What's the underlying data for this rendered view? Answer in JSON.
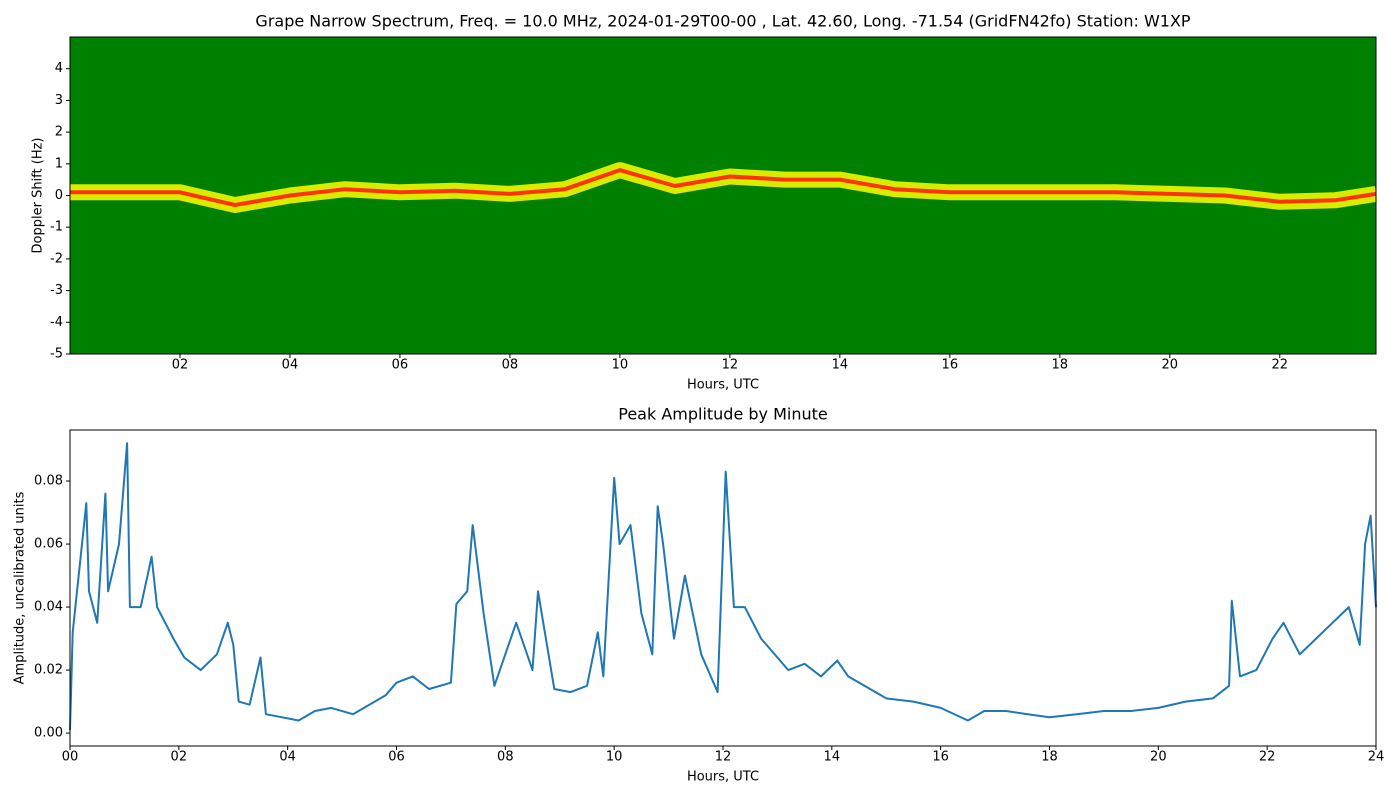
{
  "chart_data": [
    {
      "type": "spectrogram",
      "title": "Grape Narrow Spectrum, Freq. = 10.0 MHz, 2024-01-29T00-00 , Lat.  42.60, Long. -71.54 (GridFN42fo) Station: W1XP",
      "x_label": "Hours, UTC",
      "y_label": "Doppler Shift (Hz)",
      "background_color": "#008000",
      "band_color": "#ffff00",
      "core_color": "#ff3300",
      "x": [
        0,
        1,
        2,
        3,
        4,
        5,
        6,
        7,
        8,
        9,
        10,
        11,
        12,
        13,
        14,
        15,
        16,
        17,
        18,
        19,
        20,
        21,
        22,
        23,
        23.75
      ],
      "values": [
        0.1,
        0.1,
        0.1,
        -0.3,
        0.0,
        0.2,
        0.1,
        0.15,
        0.05,
        0.2,
        0.8,
        0.3,
        0.6,
        0.5,
        0.5,
        0.2,
        0.1,
        0.1,
        0.1,
        0.1,
        0.05,
        0.0,
        -0.2,
        -0.15,
        0.05
      ],
      "xlim": [
        0,
        23.75
      ],
      "ylim": [
        -5,
        5
      ],
      "xticks": [
        {
          "value": 2,
          "label": "02"
        },
        {
          "value": 4,
          "label": "04"
        },
        {
          "value": 6,
          "label": "06"
        },
        {
          "value": 8,
          "label": "08"
        },
        {
          "value": 10,
          "label": "10"
        },
        {
          "value": 12,
          "label": "12"
        },
        {
          "value": 14,
          "label": "14"
        },
        {
          "value": 16,
          "label": "16"
        },
        {
          "value": 18,
          "label": "18"
        },
        {
          "value": 20,
          "label": "20"
        },
        {
          "value": 22,
          "label": "22"
        }
      ],
      "yticks": [
        -5,
        -4,
        -3,
        -2,
        -1,
        0,
        1,
        2,
        3,
        4
      ]
    },
    {
      "type": "line",
      "title": "Peak Amplitude by Minute",
      "x_label": "Hours, UTC",
      "y_label": "Amplitude, uncalibrated units",
      "color": "#1f77b4",
      "x": [
        0,
        0.05,
        0.3,
        0.35,
        0.5,
        0.65,
        0.7,
        0.9,
        1.05,
        1.1,
        1.3,
        1.5,
        1.6,
        1.9,
        2.1,
        2.4,
        2.7,
        2.9,
        3.0,
        3.1,
        3.3,
        3.5,
        3.6,
        3.9,
        4.2,
        4.5,
        4.8,
        5.2,
        5.5,
        5.8,
        6.0,
        6.3,
        6.6,
        7.0,
        7.1,
        7.3,
        7.4,
        7.6,
        7.8,
        8.2,
        8.5,
        8.6,
        8.9,
        9.2,
        9.5,
        9.7,
        9.8,
        10.0,
        10.1,
        10.3,
        10.5,
        10.7,
        10.8,
        10.9,
        11.1,
        11.3,
        11.6,
        11.9,
        12.05,
        12.2,
        12.4,
        12.7,
        13.0,
        13.2,
        13.5,
        13.8,
        14.1,
        14.3,
        14.6,
        15.0,
        15.5,
        16.0,
        16.5,
        16.8,
        17.2,
        17.6,
        18.0,
        18.5,
        19.0,
        19.5,
        20.0,
        20.5,
        21.0,
        21.3,
        21.35,
        21.5,
        21.8,
        22.1,
        22.3,
        22.6,
        22.9,
        23.2,
        23.5,
        23.7,
        23.8,
        23.9,
        24.0
      ],
      "values": [
        0.001,
        0.032,
        0.073,
        0.045,
        0.035,
        0.076,
        0.045,
        0.06,
        0.092,
        0.04,
        0.04,
        0.056,
        0.04,
        0.03,
        0.024,
        0.02,
        0.025,
        0.035,
        0.028,
        0.01,
        0.009,
        0.024,
        0.006,
        0.005,
        0.004,
        0.007,
        0.008,
        0.006,
        0.009,
        0.012,
        0.016,
        0.018,
        0.014,
        0.016,
        0.041,
        0.045,
        0.066,
        0.038,
        0.015,
        0.035,
        0.02,
        0.045,
        0.014,
        0.013,
        0.015,
        0.032,
        0.018,
        0.081,
        0.06,
        0.066,
        0.038,
        0.025,
        0.072,
        0.06,
        0.03,
        0.05,
        0.025,
        0.013,
        0.083,
        0.04,
        0.04,
        0.03,
        0.024,
        0.02,
        0.022,
        0.018,
        0.023,
        0.018,
        0.015,
        0.011,
        0.01,
        0.008,
        0.004,
        0.007,
        0.007,
        0.006,
        0.005,
        0.006,
        0.007,
        0.007,
        0.008,
        0.01,
        0.011,
        0.015,
        0.042,
        0.018,
        0.02,
        0.03,
        0.035,
        0.025,
        0.03,
        0.035,
        0.04,
        0.028,
        0.06,
        0.069,
        0.04
      ],
      "xlim": [
        0,
        24
      ],
      "ylim": [
        -0.0041,
        0.0962
      ],
      "xticks": [
        {
          "value": 0,
          "label": "00"
        },
        {
          "value": 2,
          "label": "02"
        },
        {
          "value": 4,
          "label": "04"
        },
        {
          "value": 6,
          "label": "06"
        },
        {
          "value": 8,
          "label": "08"
        },
        {
          "value": 10,
          "label": "10"
        },
        {
          "value": 12,
          "label": "12"
        },
        {
          "value": 14,
          "label": "14"
        },
        {
          "value": 16,
          "label": "16"
        },
        {
          "value": 18,
          "label": "18"
        },
        {
          "value": 20,
          "label": "20"
        },
        {
          "value": 22,
          "label": "22"
        },
        {
          "value": 24,
          "label": "24"
        }
      ],
      "yticks": [
        {
          "value": 0,
          "label": "0.00"
        },
        {
          "value": 0.02,
          "label": "0.02"
        },
        {
          "value": 0.04,
          "label": "0.04"
        },
        {
          "value": 0.06,
          "label": "0.06"
        },
        {
          "value": 0.08,
          "label": "0.08"
        }
      ]
    }
  ]
}
